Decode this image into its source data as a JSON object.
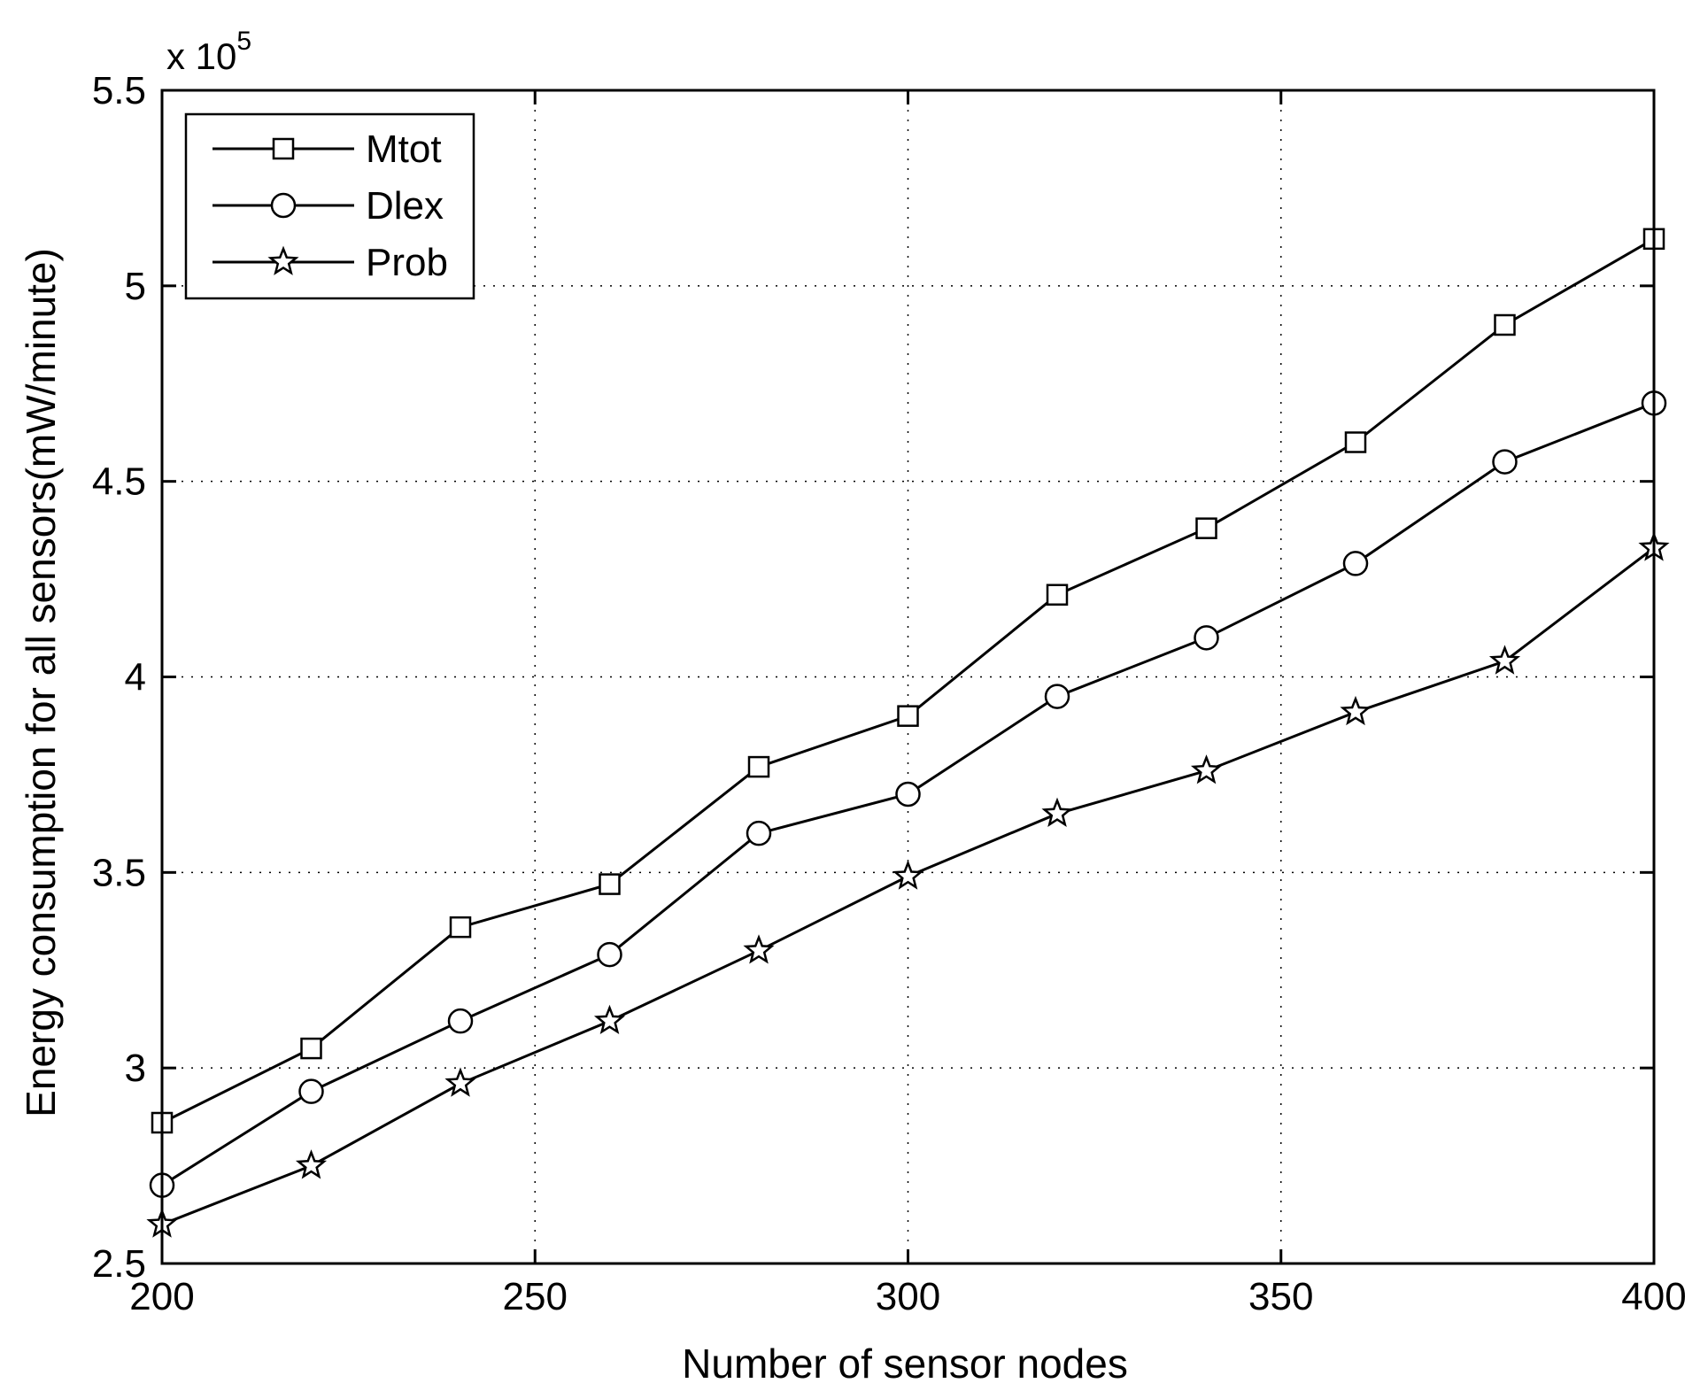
{
  "chart_data": {
    "type": "line",
    "xlabel": "Number of sensor nodes",
    "ylabel": "Energy consumption for all sensors(mW/minute)",
    "y_exponent_base": "x 10",
    "y_exponent_power": "5",
    "xlim": [
      200,
      400
    ],
    "ylim": [
      2.5,
      5.5
    ],
    "xticks": [
      200,
      250,
      300,
      350,
      400
    ],
    "yticks": [
      2.5,
      3,
      3.5,
      4,
      4.5,
      5,
      5.5
    ],
    "xtick_labels": [
      "200",
      "250",
      "300",
      "350",
      "400"
    ],
    "ytick_labels": [
      "2.5",
      "3",
      "3.5",
      "4",
      "4.5",
      "5",
      "5.5"
    ],
    "grid": true,
    "legend_position": "top-left",
    "x": [
      200,
      220,
      240,
      260,
      280,
      300,
      320,
      340,
      360,
      380,
      400
    ],
    "series": [
      {
        "name": "Mtot",
        "marker": "square",
        "values": [
          2.86,
          3.05,
          3.36,
          3.47,
          3.77,
          3.9,
          4.21,
          4.38,
          4.6,
          4.9,
          5.12
        ]
      },
      {
        "name": "Dlex",
        "marker": "circle",
        "values": [
          2.7,
          2.94,
          3.12,
          3.29,
          3.6,
          3.7,
          3.95,
          4.1,
          4.29,
          4.55,
          4.7
        ]
      },
      {
        "name": "Prob",
        "marker": "star",
        "values": [
          2.6,
          2.75,
          2.96,
          3.12,
          3.3,
          3.49,
          3.65,
          3.76,
          3.91,
          4.04,
          4.33
        ]
      }
    ]
  }
}
